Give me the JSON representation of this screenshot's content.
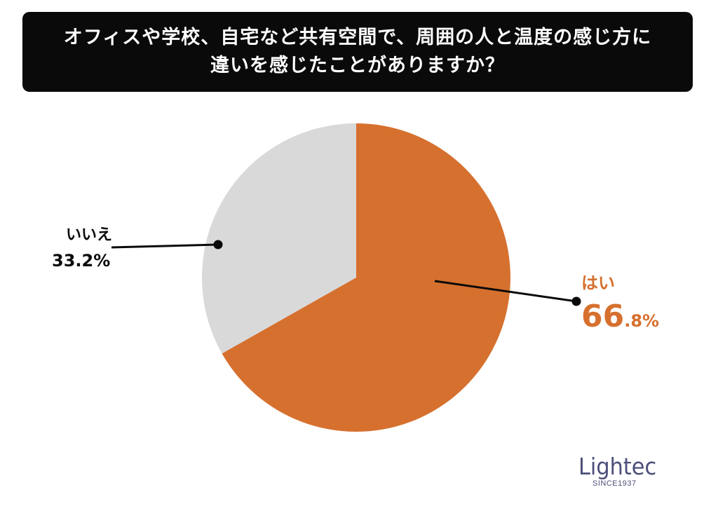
{
  "title": {
    "line1": "オフィスや学校、自宅など共有空間で、周囲の人と温度の感じ方に",
    "line2": "違いを感じたことがありますか？"
  },
  "chart_data": {
    "type": "pie",
    "slices": [
      {
        "label": "はい",
        "value": 66.8,
        "display_int": "66",
        "display_dec": ".8%",
        "color": "#d6702e"
      },
      {
        "label": "いいえ",
        "value": 33.2,
        "display": "33.2%",
        "color": "#d9d9d9"
      }
    ],
    "start_direction": "12 o'clock",
    "order": "clockwise"
  },
  "logo": {
    "word": "Lightec",
    "sub": "SINCE1937"
  },
  "colors": {
    "banner": "#0a0a0a",
    "accent": "#d6702e",
    "gray": "#d9d9d9",
    "logo": "#4b4f7a"
  }
}
